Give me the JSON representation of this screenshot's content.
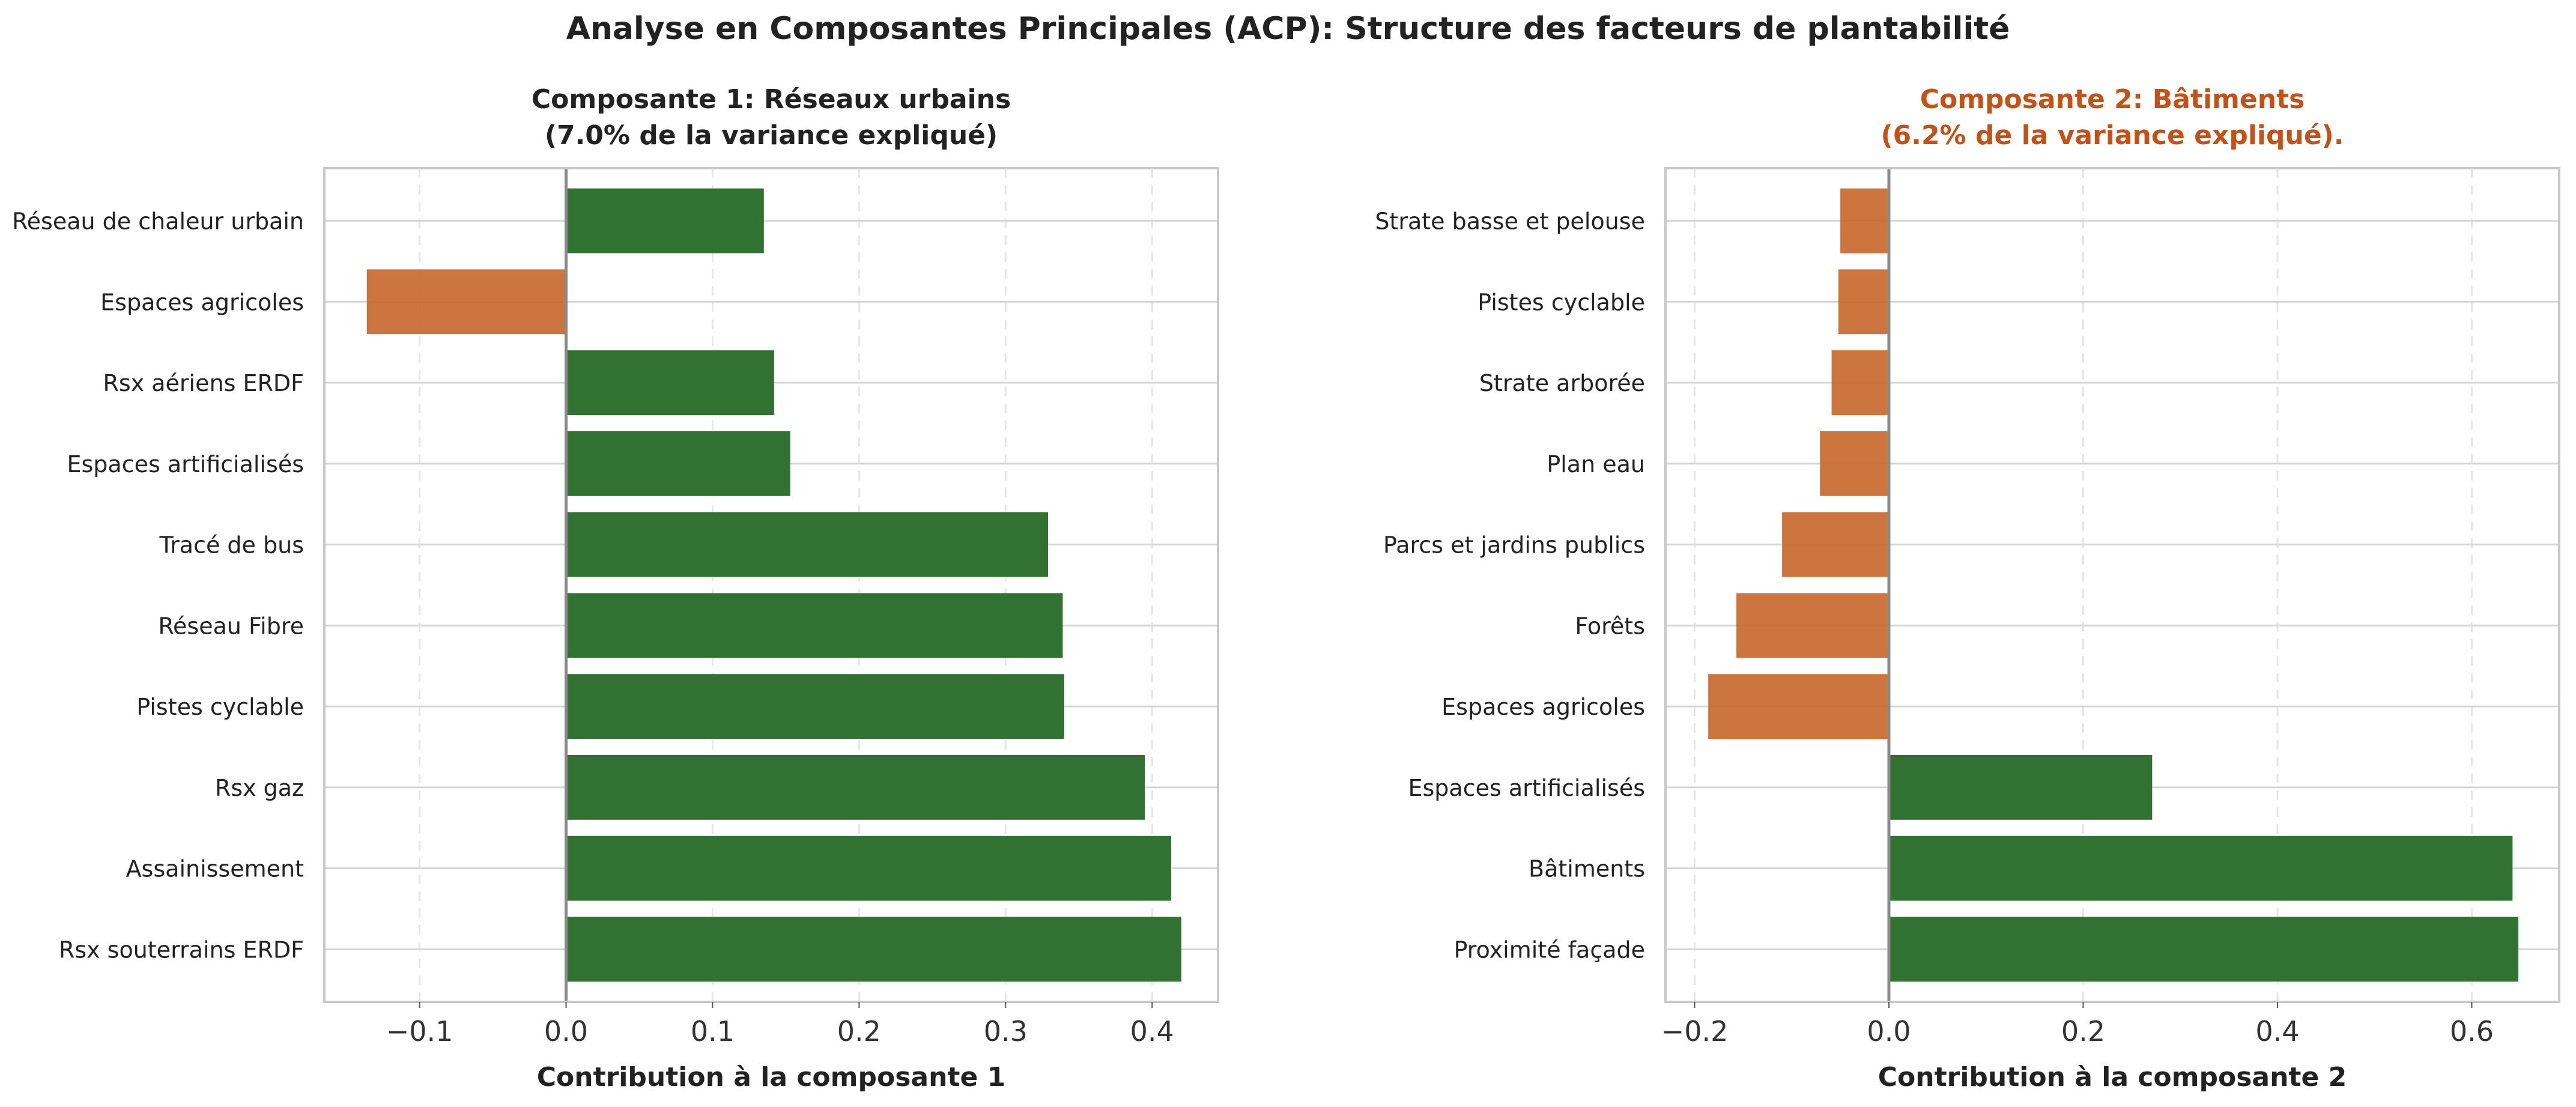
{
  "suptitle": "Analyse en Composantes Principales (ACP): Structure des facteurs de plantabilité",
  "colors": {
    "positive": "#2d6e2d",
    "negative": "#c8692f",
    "title2": "#c0521a",
    "grid": "#d6d6d6",
    "zero": "#8a8a8a",
    "frame": "#c8c8c8"
  },
  "chart_data": [
    {
      "type": "bar",
      "orientation": "horizontal",
      "title_line1": "Composante 1: Réseaux urbains",
      "title_line2": "(7.0% de la variance expliqué)",
      "xlabel": "Contribution à la composante 1",
      "xlim": [
        -0.165,
        0.445
      ],
      "xticks": [
        -0.1,
        0.0,
        0.1,
        0.2,
        0.3,
        0.4
      ],
      "xtick_labels": [
        "−0.1",
        "0.0",
        "0.1",
        "0.2",
        "0.3",
        "0.4"
      ],
      "grid": "x-dashed, y-solid",
      "categories": [
        "Réseau de chaleur urbain",
        "Espaces agricoles",
        "Rsx aériens ERDF",
        "Espaces artificialisés",
        "Tracé de bus",
        "Réseau Fibre",
        "Pistes cyclable",
        "Rsx gaz",
        "Assainissement",
        "Rsx souterrains ERDF"
      ],
      "values": [
        0.135,
        -0.136,
        0.142,
        0.153,
        0.329,
        0.339,
        0.34,
        0.395,
        0.413,
        0.42
      ]
    },
    {
      "type": "bar",
      "orientation": "horizontal",
      "title_line1": "Composante 2: Bâtiments",
      "title_line2": "(6.2% de la variance expliqué).",
      "xlabel": "Contribution à la composante 2",
      "xlim": [
        -0.23,
        0.69
      ],
      "xticks": [
        -0.2,
        0.0,
        0.2,
        0.4,
        0.6
      ],
      "xtick_labels": [
        "−0.2",
        "0.0",
        "0.2",
        "0.4",
        "0.6"
      ],
      "grid": "x-dashed, y-solid",
      "categories": [
        "Strate basse et pelouse",
        "Pistes cyclable",
        "Strate arborée",
        "Plan eau",
        "Parcs et jardins publics",
        "Forêts",
        "Espaces agricoles",
        "Espaces artificialisés",
        "Bâtiments",
        "Proximité façade"
      ],
      "values": [
        -0.05,
        -0.052,
        -0.059,
        -0.071,
        -0.11,
        -0.157,
        -0.186,
        0.271,
        0.642,
        0.648
      ]
    }
  ]
}
